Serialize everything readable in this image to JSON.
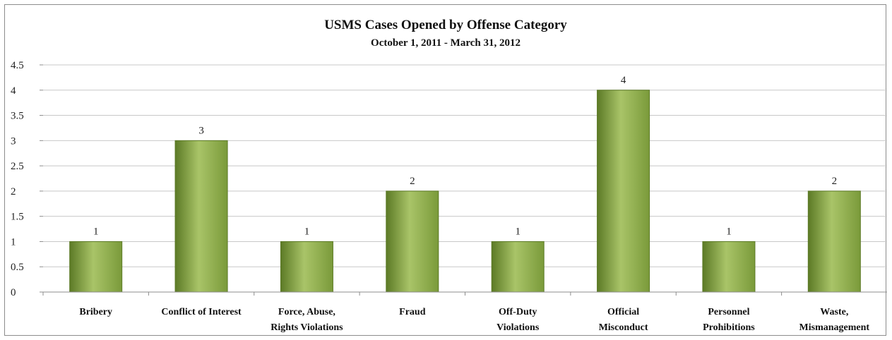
{
  "chart_data": {
    "type": "bar",
    "title": "USMS Cases Opened by Offense Category",
    "subtitle": "October 1, 2011 - March 31, 2012",
    "categories": [
      [
        "Bribery"
      ],
      [
        "Conflict of Interest"
      ],
      [
        "Force, Abuse,",
        "Rights Violations"
      ],
      [
        "Fraud"
      ],
      [
        "Off-Duty",
        "Violations"
      ],
      [
        "Official",
        "Misconduct"
      ],
      [
        "Personnel",
        "Prohibitions"
      ],
      [
        "Waste,",
        "Mismanagement"
      ]
    ],
    "values": [
      1,
      3,
      1,
      2,
      1,
      4,
      1,
      2
    ],
    "ylim": [
      0,
      4.5
    ],
    "yticks": [
      "0",
      "0.5",
      "1",
      "1.5",
      "2",
      "2.5",
      "3",
      "3.5",
      "4",
      "4.5"
    ],
    "grid": true,
    "legend": "none",
    "bar_color": "#7a9a3a",
    "bar_highlight": "#a9c468",
    "bar_edge": "#5c7a26",
    "grid_color": "#c8c8c8"
  }
}
